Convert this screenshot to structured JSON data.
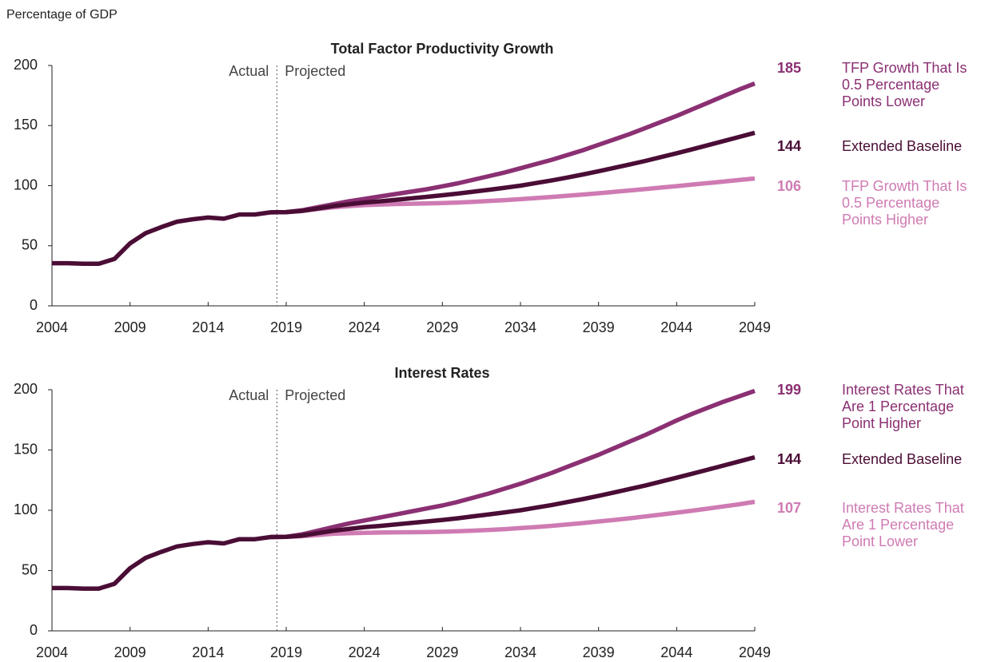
{
  "y_axis_label": "Percentage of GDP",
  "chart_data": [
    {
      "type": "line",
      "title": "Total Factor Productivity Growth",
      "annotations": [
        "Actual",
        "Projected"
      ],
      "divider_x": 2018.4,
      "x": [
        2004,
        2005,
        2006,
        2007,
        2008,
        2009,
        2010,
        2011,
        2012,
        2013,
        2014,
        2015,
        2016,
        2017,
        2018,
        2019,
        2020,
        2021,
        2022,
        2023,
        2024,
        2025,
        2026,
        2027,
        2028,
        2029,
        2030,
        2031,
        2032,
        2033,
        2034,
        2035,
        2036,
        2037,
        2038,
        2039,
        2040,
        2041,
        2042,
        2043,
        2044,
        2045,
        2046,
        2047,
        2048,
        2049
      ],
      "xlim": [
        2004,
        2049
      ],
      "xticks": [
        2004,
        2009,
        2014,
        2019,
        2024,
        2029,
        2034,
        2039,
        2044,
        2049
      ],
      "ylim": [
        0,
        200
      ],
      "yticks": [
        0,
        50,
        100,
        150,
        200
      ],
      "series": [
        {
          "name": "Extended Baseline",
          "color": "#4a0d35",
          "values": [
            35.5,
            35.5,
            35,
            35,
            39,
            52,
            60.5,
            65.5,
            70,
            72,
            73.5,
            72.5,
            76,
            76,
            77.8,
            78,
            79,
            81,
            83,
            84.5,
            86,
            87,
            88.2,
            89.5,
            90.7,
            92,
            93.4,
            95,
            96.6,
            98.3,
            100,
            102.2,
            104.4,
            106.8,
            109.3,
            112,
            114.8,
            117.7,
            120.6,
            123.8,
            127,
            130.3,
            133.7,
            137.1,
            140.5,
            144
          ]
        },
        {
          "name": "TFP Growth That Is 0.5 Percentage Points Lower",
          "color": "#8b3073",
          "values": [
            null,
            null,
            null,
            null,
            null,
            null,
            null,
            null,
            null,
            null,
            null,
            null,
            null,
            null,
            77.8,
            78,
            79.5,
            82,
            84.5,
            87,
            89,
            91,
            93,
            95,
            97,
            99.5,
            102,
            105,
            108,
            111,
            114.5,
            118,
            121.5,
            125.5,
            129.5,
            134,
            138.5,
            143,
            148,
            153,
            158,
            163.5,
            169,
            174.5,
            180,
            185
          ]
        },
        {
          "name": "TFP Growth That Is 0.5 Percentage Points Higher",
          "color": "#cf7bb3",
          "values": [
            null,
            null,
            null,
            null,
            null,
            null,
            null,
            null,
            null,
            null,
            null,
            null,
            null,
            null,
            77.8,
            78,
            79,
            80.5,
            82,
            83,
            83.8,
            84.3,
            84.7,
            85,
            85.2,
            85.5,
            86,
            86.6,
            87.3,
            88,
            88.8,
            89.7,
            90.6,
            91.6,
            92.6,
            93.7,
            94.8,
            96,
            97.2,
            98.4,
            99.6,
            100.9,
            102.1,
            103.4,
            104.7,
            106
          ]
        }
      ]
    },
    {
      "type": "line",
      "title": "Interest Rates",
      "annotations": [
        "Actual",
        "Projected"
      ],
      "divider_x": 2018.4,
      "x": [
        2004,
        2005,
        2006,
        2007,
        2008,
        2009,
        2010,
        2011,
        2012,
        2013,
        2014,
        2015,
        2016,
        2017,
        2018,
        2019,
        2020,
        2021,
        2022,
        2023,
        2024,
        2025,
        2026,
        2027,
        2028,
        2029,
        2030,
        2031,
        2032,
        2033,
        2034,
        2035,
        2036,
        2037,
        2038,
        2039,
        2040,
        2041,
        2042,
        2043,
        2044,
        2045,
        2046,
        2047,
        2048,
        2049
      ],
      "xlim": [
        2004,
        2049
      ],
      "xticks": [
        2004,
        2009,
        2014,
        2019,
        2024,
        2029,
        2034,
        2039,
        2044,
        2049
      ],
      "ylim": [
        0,
        200
      ],
      "yticks": [
        0,
        50,
        100,
        150,
        200
      ],
      "series": [
        {
          "name": "Extended Baseline",
          "color": "#4a0d35",
          "values": [
            35.5,
            35.5,
            35,
            35,
            39,
            52,
            60.5,
            65.5,
            70,
            72,
            73.5,
            72.5,
            76,
            76,
            77.8,
            78,
            79,
            81,
            83,
            84.5,
            86,
            87,
            88.2,
            89.5,
            90.7,
            92,
            93.4,
            95,
            96.6,
            98.3,
            100,
            102.2,
            104.4,
            106.8,
            109.3,
            112,
            114.8,
            117.7,
            120.6,
            123.8,
            127,
            130.3,
            133.7,
            137.1,
            140.5,
            144
          ]
        },
        {
          "name": "Interest Rates That Are 1 Percentage Point Higher",
          "color": "#8b3073",
          "values": [
            null,
            null,
            null,
            null,
            null,
            null,
            null,
            null,
            null,
            null,
            null,
            null,
            null,
            null,
            77.8,
            78,
            80,
            83,
            86,
            89,
            91.5,
            94,
            96.5,
            99,
            101.5,
            104,
            107,
            110.5,
            114,
            118,
            122,
            126.5,
            131,
            136,
            141,
            146,
            151.5,
            157,
            162.5,
            168.5,
            174.5,
            180,
            185,
            190,
            194.5,
            199
          ]
        },
        {
          "name": "Interest Rates That Are 1 Percentage Point Lower",
          "color": "#cf7bb3",
          "values": [
            null,
            null,
            null,
            null,
            null,
            null,
            null,
            null,
            null,
            null,
            null,
            null,
            null,
            null,
            77.8,
            78,
            78.5,
            79.5,
            80.5,
            81,
            81.3,
            81.5,
            81.7,
            81.8,
            82,
            82.2,
            82.6,
            83.1,
            83.7,
            84.4,
            85.2,
            86.1,
            87.1,
            88.2,
            89.4,
            90.7,
            92,
            93.4,
            94.9,
            96.4,
            98,
            99.7,
            101.4,
            103.2,
            105,
            107
          ]
        }
      ]
    }
  ]
}
